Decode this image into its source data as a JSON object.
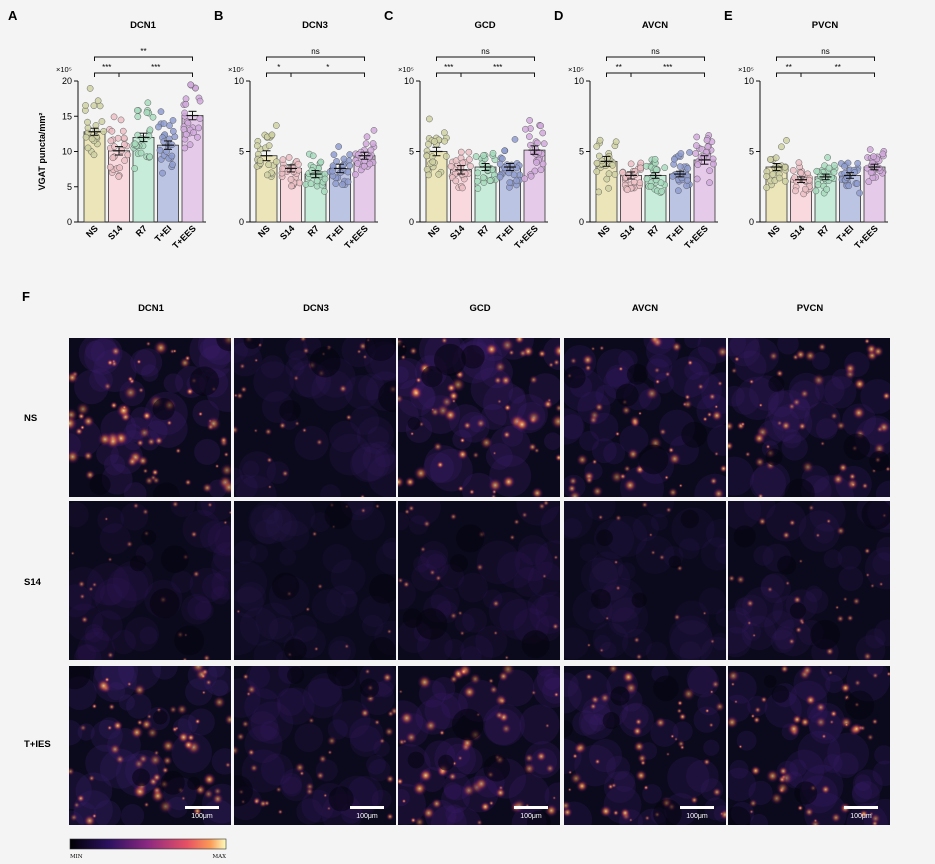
{
  "figure": {
    "letters": [
      "A",
      "B",
      "C",
      "D",
      "E",
      "F"
    ],
    "ylabel": "VGAT puncta/mm²",
    "categories": [
      "NS",
      "S14",
      "R7",
      "T+EI",
      "T+EES"
    ],
    "colors": {
      "fills": [
        "#ece5b9",
        "#f9d9de",
        "#c7ecd9",
        "#bcc4e4",
        "#e5caea"
      ],
      "points": [
        "#cfd1a2",
        "#ecc0c4",
        "#a7dcbd",
        "#8f9ed0",
        "#d1a9dc"
      ]
    }
  },
  "image_grid": {
    "label": "F",
    "columns": [
      "DCN1",
      "DCN3",
      "GCD",
      "AVCN",
      "PVCN"
    ],
    "rows": [
      "NS",
      "S14",
      "T+IES"
    ],
    "scale_bar": "100μm",
    "colorbar": {
      "min": "MIN",
      "max": "MAX"
    }
  },
  "chart_data": [
    {
      "type": "bar",
      "title": "DCN1",
      "categories": [
        "NS",
        "S14",
        "R7",
        "T+EI",
        "T+EES"
      ],
      "values": [
        12.8,
        10.1,
        12.0,
        10.9,
        15.1
      ],
      "errors": [
        0.5,
        0.6,
        0.6,
        0.6,
        0.6
      ],
      "ylim": [
        0,
        20
      ],
      "yticks": [
        "0",
        "5",
        "10",
        "15",
        "20"
      ],
      "multiplier": "×10⁵",
      "ylabel": "VGAT puncta/mm²",
      "comparisons": [
        {
          "label": "***",
          "from": 0,
          "to": 1,
          "level": 1
        },
        {
          "label": "***",
          "from": 1,
          "to": 4,
          "level": 1
        },
        {
          "label": "**",
          "from": 0,
          "to": 4,
          "level": 2
        }
      ]
    },
    {
      "type": "bar",
      "title": "DCN3",
      "categories": [
        "NS",
        "S14",
        "R7",
        "T+EI",
        "T+EES"
      ],
      "values": [
        4.7,
        3.8,
        3.4,
        3.8,
        4.7
      ],
      "errors": [
        0.35,
        0.25,
        0.25,
        0.3,
        0.25
      ],
      "ylim": [
        0,
        10
      ],
      "yticks": [
        "0",
        "5",
        "10"
      ],
      "multiplier": "×10⁵",
      "comparisons": [
        {
          "label": "*",
          "from": 0,
          "to": 1,
          "level": 1
        },
        {
          "label": "*",
          "from": 1,
          "to": 4,
          "level": 1
        },
        {
          "label": "ns",
          "from": 0,
          "to": 4,
          "level": 2
        }
      ]
    },
    {
      "type": "bar",
      "title": "GCD",
      "categories": [
        "NS",
        "S14",
        "R7",
        "T+EI",
        "T+EES"
      ],
      "values": [
        5.0,
        3.7,
        3.9,
        3.9,
        5.1
      ],
      "errors": [
        0.3,
        0.3,
        0.25,
        0.25,
        0.3
      ],
      "ylim": [
        0,
        10
      ],
      "yticks": [
        "0",
        "5",
        "10"
      ],
      "multiplier": "×10⁵",
      "comparisons": [
        {
          "label": "***",
          "from": 0,
          "to": 1,
          "level": 1
        },
        {
          "label": "***",
          "from": 1,
          "to": 4,
          "level": 1
        },
        {
          "label": "ns",
          "from": 0,
          "to": 4,
          "level": 2
        }
      ]
    },
    {
      "type": "bar",
      "title": "AVCN",
      "categories": [
        "NS",
        "S14",
        "R7",
        "T+EI",
        "T+EES"
      ],
      "values": [
        4.3,
        3.3,
        3.3,
        3.4,
        4.4
      ],
      "errors": [
        0.35,
        0.25,
        0.2,
        0.2,
        0.3
      ],
      "ylim": [
        0,
        10
      ],
      "yticks": [
        "0",
        "5",
        "10"
      ],
      "multiplier": "×10⁵",
      "comparisons": [
        {
          "label": "**",
          "from": 0,
          "to": 1,
          "level": 1
        },
        {
          "label": "***",
          "from": 1,
          "to": 4,
          "level": 1
        },
        {
          "label": "ns",
          "from": 0,
          "to": 4,
          "level": 2
        }
      ]
    },
    {
      "type": "bar",
      "title": "PVCN",
      "categories": [
        "NS",
        "S14",
        "R7",
        "T+EI",
        "T+EES"
      ],
      "values": [
        3.9,
        3.0,
        3.2,
        3.3,
        3.9
      ],
      "errors": [
        0.25,
        0.2,
        0.2,
        0.2,
        0.2
      ],
      "ylim": [
        0,
        10
      ],
      "yticks": [
        "0",
        "5",
        "10"
      ],
      "multiplier": "×10⁵",
      "comparisons": [
        {
          "label": "**",
          "from": 0,
          "to": 1,
          "level": 1
        },
        {
          "label": "**",
          "from": 1,
          "to": 4,
          "level": 1
        },
        {
          "label": "ns",
          "from": 0,
          "to": 4,
          "level": 2
        }
      ]
    }
  ]
}
